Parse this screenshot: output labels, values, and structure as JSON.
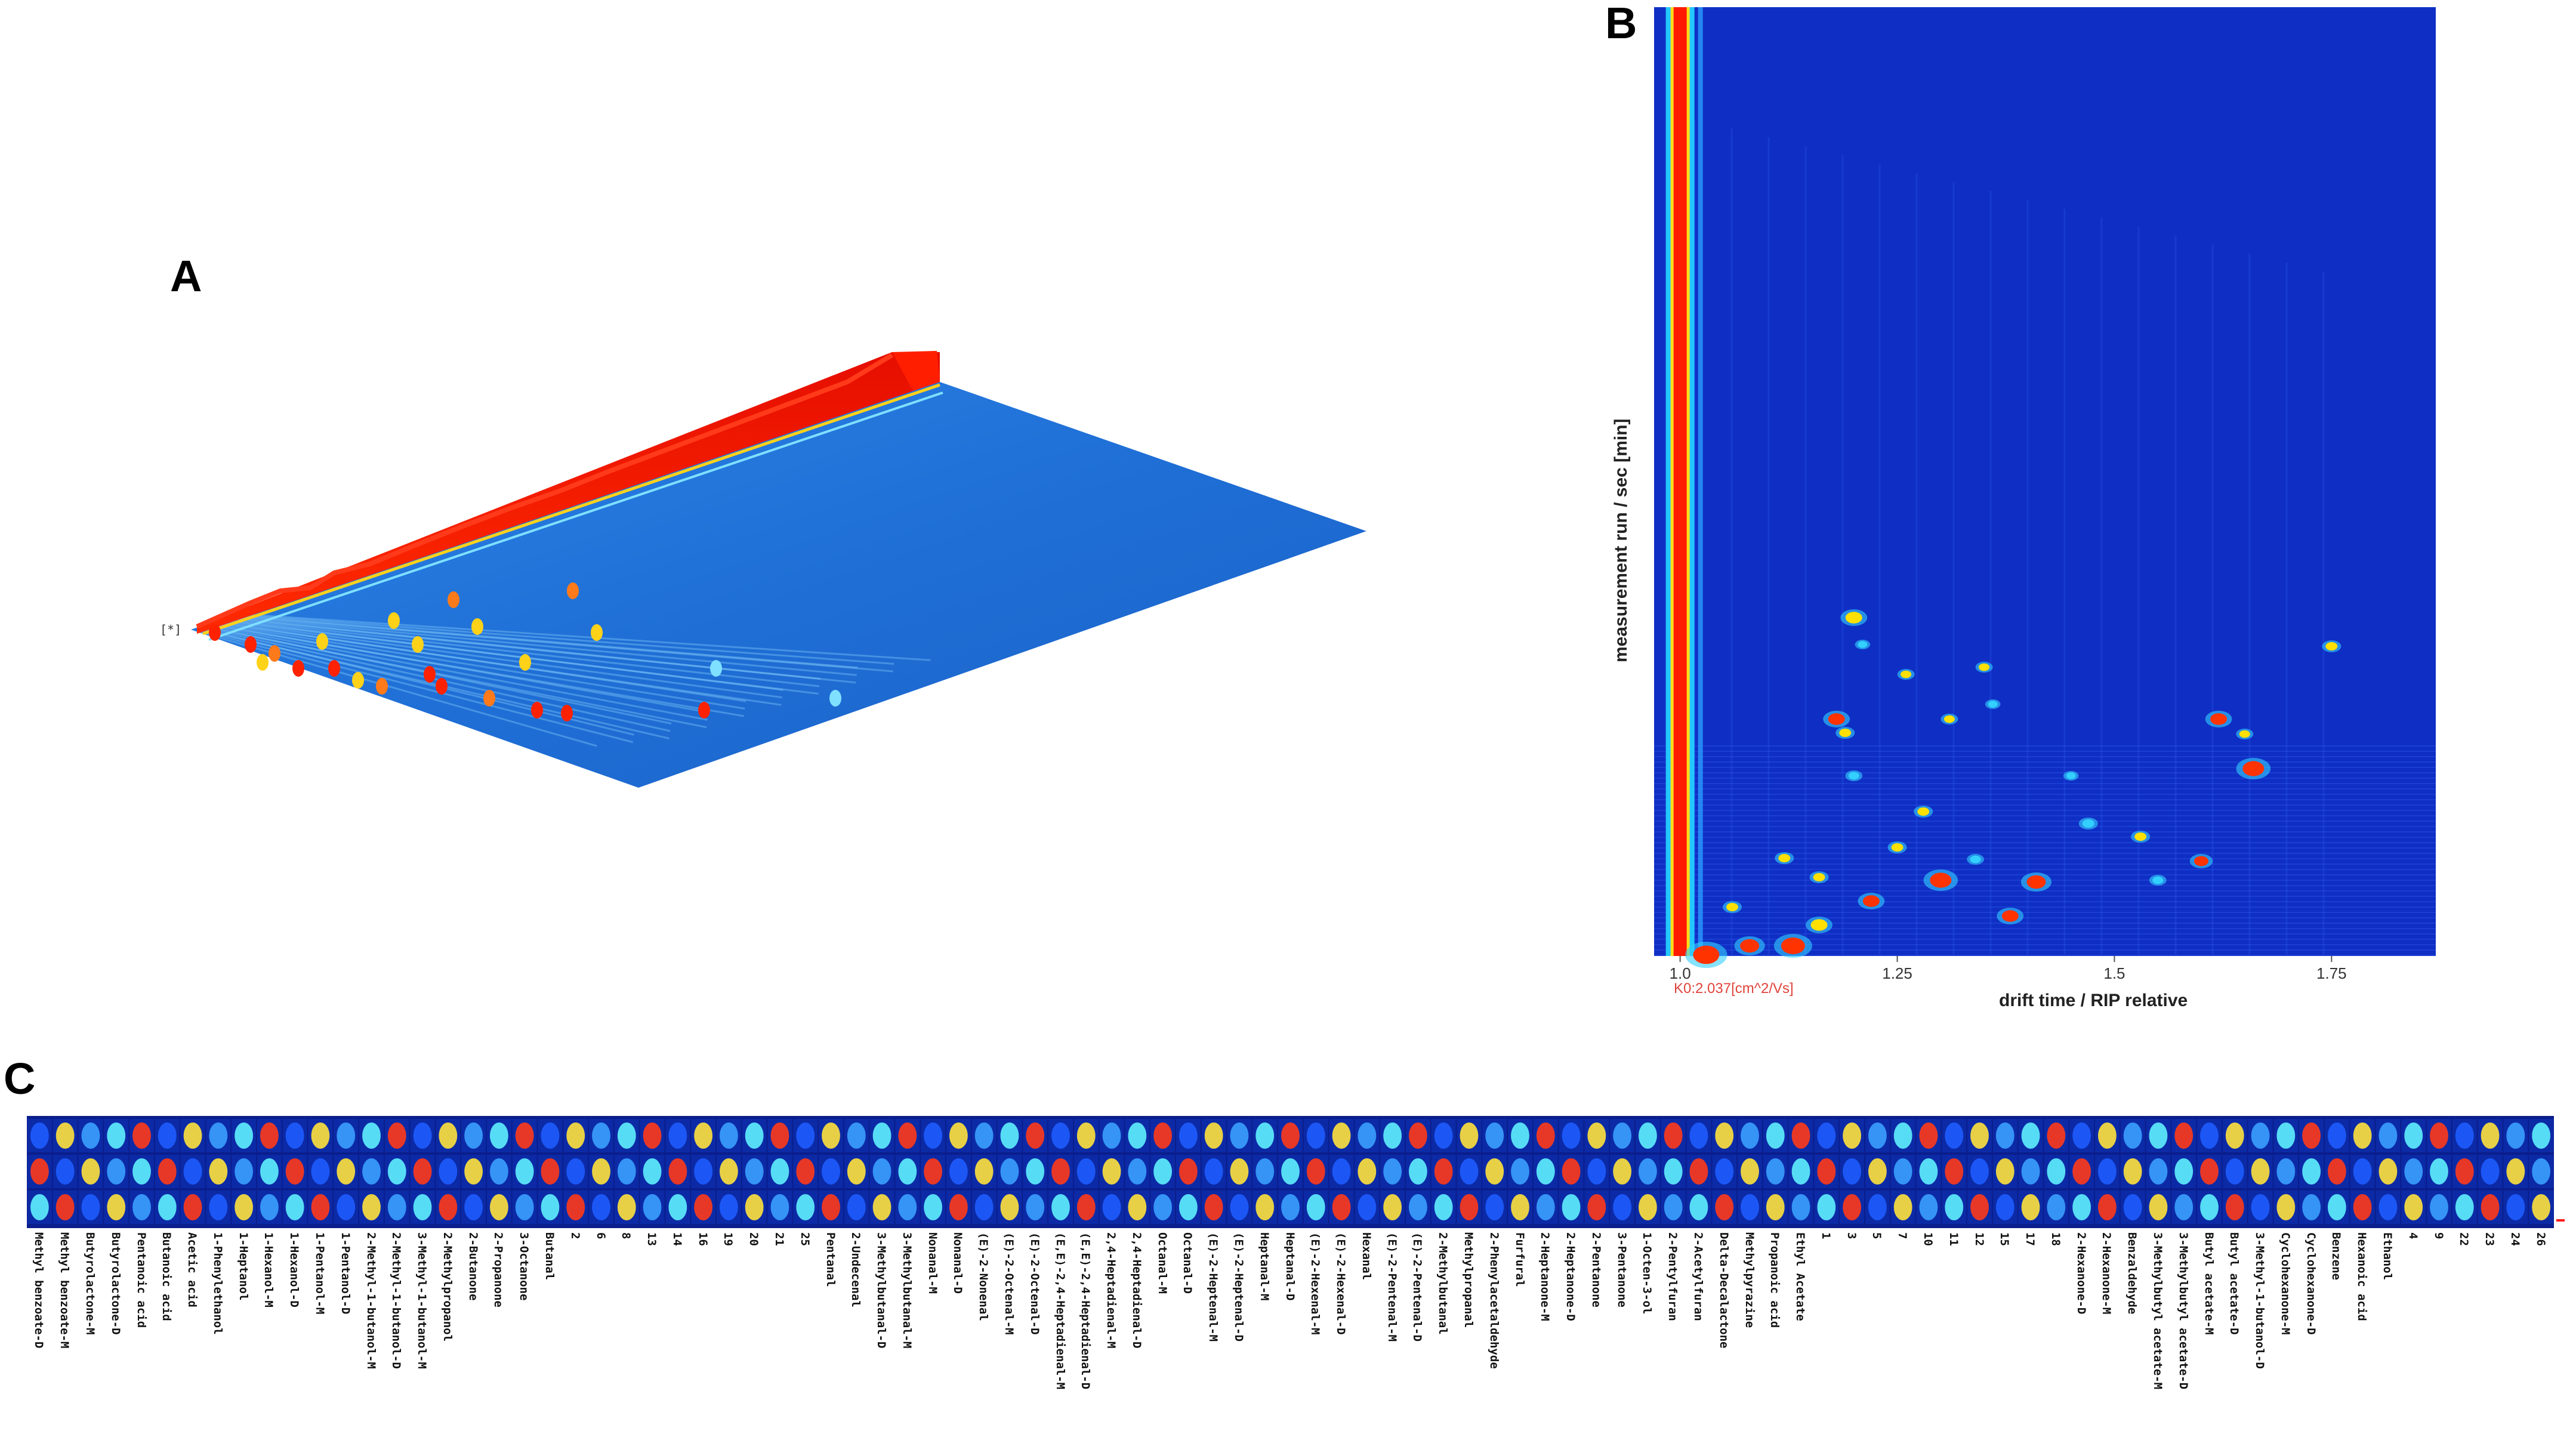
{
  "panels": {
    "a": {
      "letter": "A",
      "marker": "[*]"
    },
    "b": {
      "letter": "B"
    },
    "c": {
      "letter": "C"
    }
  },
  "chart_data": [
    {
      "type": "heatmap",
      "panel": "A",
      "description_visible": "3D topographic GC-IMS spectrum",
      "colors": {
        "background_plane": "#1f6fd6",
        "reactant_ion_peak": "#ff1a00",
        "peaks": [
          "#ffd21a",
          "#ff7a1a",
          "#ff2200",
          "#7fe0ff"
        ]
      }
    },
    {
      "type": "heatmap",
      "panel": "B",
      "xlabel": "drift time / RIP relative",
      "ylabel": "measurement run / sec [min]",
      "x_ticks": [
        "1.0",
        "1.25",
        "1.5",
        "1.75"
      ],
      "xlim": [
        0.97,
        1.87
      ],
      "k0_label": "K0:2.037[cm^2/Vs]",
      "colors": {
        "background": "#0f2fc4",
        "rip": "#ff1a00",
        "spot_high": "#ff3300",
        "spot_mid": "#ffe000",
        "spot_low": "#33d0ff"
      }
    },
    {
      "type": "heatmap",
      "panel": "C",
      "row_count": 3,
      "categories": [
        "Methyl benzoate-D",
        "Methyl benzoate-M",
        "Butyrolactone-M",
        "Butyrolactone-D",
        "Pentanoic acid",
        "Butanoic acid",
        "Acetic acid",
        "1-Phenylethanol",
        "1-Heptanol",
        "1-Hexanol-M",
        "1-Hexanol-D",
        "1-Pentanol-M",
        "1-Pentanol-D",
        "2-Methyl-1-butanol-M",
        "2-Methyl-1-butanol-D",
        "3-Methyl-1-butanol-M",
        "2-Methylpropanol",
        "2-Butanone",
        "2-Propanone",
        "3-Octanone",
        "Butanal",
        "2",
        "6",
        "8",
        "13",
        "14",
        "16",
        "19",
        "20",
        "21",
        "25",
        "Pentanal",
        "2-Undecenal",
        "3-Methylbutanal-D",
        "3-Methylbutanal-M",
        "Nonanal-M",
        "Nonanal-D",
        "(E)-2-Nonenal",
        "(E)-2-Octenal-M",
        "(E)-2-Octenal-D",
        "(E,E)-2,4-Heptadienal-M",
        "(E,E)-2,4-Heptadienal-D",
        "2,4-Heptadienal-M",
        "2,4-Heptadienal-D",
        "Octanal-M",
        "Octanal-D",
        "(E)-2-Heptenal-M",
        "(E)-2-Heptenal-D",
        "Heptanal-M",
        "Heptanal-D",
        "(E)-2-Hexenal-M",
        "(E)-2-Hexenal-D",
        "Hexanal",
        "(E)-2-Pentenal-M",
        "(E)-2-Pentenal-D",
        "2-Methylbutanal",
        "Methylpropanal",
        "2-Phenylacetaldehyde",
        "Furfural",
        "2-Heptanone-M",
        "2-Heptanone-D",
        "2-Pentanone",
        "3-Pentanone",
        "1-Octen-3-ol",
        "2-Pentylfuran",
        "2-Acetylfuran",
        "Delta-Decalactone",
        "Methylpyrazine",
        "Propanoic acid",
        "Ethyl Acetate",
        "1",
        "3",
        "5",
        "7",
        "10",
        "11",
        "12",
        "15",
        "17",
        "18",
        "2-Hexanone-D",
        "2-Hexanone-M",
        "Benzaldehyde",
        "3-Methylbutyl acetate-M",
        "3-Methylbutyl acetate-D",
        "Butyl acetate-M",
        "Butyl acetate-D",
        "3-Methyl-1-butanol-D",
        "Cyclohexanone-M",
        "Cyclohexanone-D",
        "Benzene",
        "Hexanoic acid",
        "Ethanol",
        "4",
        "9",
        "22",
        "23",
        "24",
        "26"
      ],
      "colors": {
        "background": "#0a1e8c",
        "low": "#1e5cff",
        "mid": "#5ff0ff",
        "high": "#ffe23c",
        "peak": "#ff3a1a"
      }
    }
  ]
}
